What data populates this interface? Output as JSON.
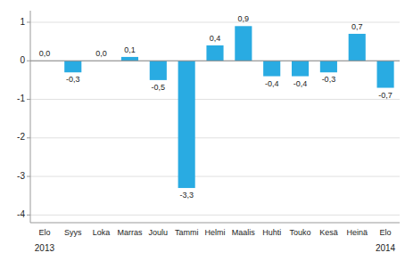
{
  "chart_data": {
    "type": "bar",
    "categories": [
      "Elo",
      "Syys",
      "Loka",
      "Marras",
      "Joulu",
      "Tammi",
      "Helmi",
      "Maalis",
      "Huhti",
      "Touko",
      "Kesä",
      "Heinä",
      "Elo"
    ],
    "values": [
      0.0,
      -0.3,
      0.0,
      0.1,
      -0.5,
      -3.3,
      0.4,
      0.9,
      -0.4,
      -0.4,
      -0.3,
      0.7,
      -0.7
    ],
    "value_labels": [
      "0,0",
      "-0,3",
      "0,0",
      "0,1",
      "-0,5",
      "-3,3",
      "0,4",
      "0,9",
      "-0,4",
      "-0,4",
      "-0,3",
      "0,7",
      "-0,7"
    ],
    "data_labels": true,
    "color": "#29abe2",
    "ylim": [
      -4.2,
      1.3
    ],
    "yticks": [
      -4,
      -3,
      -2,
      -1,
      0,
      1
    ],
    "grid": true,
    "annotations": [
      "2013",
      "2014"
    ]
  }
}
